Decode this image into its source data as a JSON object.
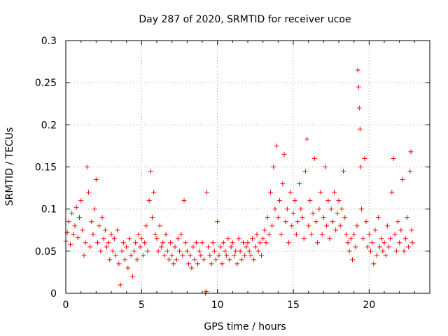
{
  "chart_data": {
    "type": "scatter",
    "title": "Day 287 of 2020, SRMTID for receiver ucoe",
    "xlabel": "GPS time / hours",
    "ylabel": "SRMTID / TECUs",
    "xlim": [
      0,
      24
    ],
    "ylim": [
      0,
      0.3
    ],
    "xticks": [
      0,
      5,
      10,
      15,
      20
    ],
    "xtick_labels": [
      "0",
      "5",
      "10",
      "15",
      "20"
    ],
    "yticks": [
      0,
      0.05,
      0.1,
      0.15,
      0.2,
      0.25,
      0.3
    ],
    "ytick_labels": [
      "0",
      "0.05",
      "0.1",
      "0.15",
      "0.2",
      "0.25",
      "0.3"
    ],
    "grid": true,
    "marker": "+",
    "color": "#ff0000",
    "series": [
      {
        "name": "SRMTID",
        "points": [
          [
            0.0,
            0.062
          ],
          [
            0.1,
            0.072
          ],
          [
            0.2,
            0.085
          ],
          [
            0.3,
            0.058
          ],
          [
            0.4,
            0.095
          ],
          [
            0.5,
            0.07
          ],
          [
            0.6,
            0.08
          ],
          [
            0.7,
            0.102
          ],
          [
            0.8,
            0.066
          ],
          [
            0.9,
            0.09
          ],
          [
            1.0,
            0.11
          ],
          [
            1.1,
            0.075
          ],
          [
            1.2,
            0.045
          ],
          [
            1.3,
            0.06
          ],
          [
            1.4,
            0.15
          ],
          [
            1.5,
            0.12
          ],
          [
            1.6,
            0.055
          ],
          [
            1.7,
            0.085
          ],
          [
            1.8,
            0.07
          ],
          [
            1.9,
            0.1
          ],
          [
            2.0,
            0.135
          ],
          [
            2.1,
            0.06
          ],
          [
            2.2,
            0.08
          ],
          [
            2.3,
            0.05
          ],
          [
            2.4,
            0.09
          ],
          [
            2.5,
            0.065
          ],
          [
            2.6,
            0.075
          ],
          [
            2.7,
            0.055
          ],
          [
            2.8,
            0.06
          ],
          [
            2.9,
            0.04
          ],
          [
            3.0,
            0.07
          ],
          [
            3.1,
            0.05
          ],
          [
            3.2,
            0.065
          ],
          [
            3.3,
            0.045
          ],
          [
            3.4,
            0.075
          ],
          [
            3.5,
            0.035
          ],
          [
            3.6,
            0.01
          ],
          [
            3.7,
            0.05
          ],
          [
            3.8,
            0.06
          ],
          [
            3.9,
            0.04
          ],
          [
            4.0,
            0.055
          ],
          [
            4.1,
            0.03
          ],
          [
            4.2,
            0.065
          ],
          [
            4.3,
            0.045
          ],
          [
            4.4,
            0.02
          ],
          [
            4.5,
            0.05
          ],
          [
            4.6,
            0.06
          ],
          [
            4.7,
            0.04
          ],
          [
            4.8,
            0.07
          ],
          [
            4.9,
            0.055
          ],
          [
            5.0,
            0.065
          ],
          [
            5.1,
            0.045
          ],
          [
            5.2,
            0.06
          ],
          [
            5.3,
            0.08
          ],
          [
            5.4,
            0.05
          ],
          [
            5.5,
            0.11
          ],
          [
            5.6,
            0.145
          ],
          [
            5.7,
            0.09
          ],
          [
            5.8,
            0.12
          ],
          [
            5.9,
            0.07
          ],
          [
            6.0,
            0.065
          ],
          [
            6.1,
            0.05
          ],
          [
            6.2,
            0.08
          ],
          [
            6.3,
            0.055
          ],
          [
            6.4,
            0.06
          ],
          [
            6.5,
            0.045
          ],
          [
            6.6,
            0.07
          ],
          [
            6.7,
            0.05
          ],
          [
            6.8,
            0.04
          ],
          [
            6.9,
            0.06
          ],
          [
            7.0,
            0.045
          ],
          [
            7.1,
            0.035
          ],
          [
            7.2,
            0.055
          ],
          [
            7.3,
            0.04
          ],
          [
            7.4,
            0.065
          ],
          [
            7.5,
            0.05
          ],
          [
            7.6,
            0.07
          ],
          [
            7.7,
            0.045
          ],
          [
            7.8,
            0.11
          ],
          [
            7.9,
            0.06
          ],
          [
            8.0,
            0.05
          ],
          [
            8.1,
            0.035
          ],
          [
            8.2,
            0.045
          ],
          [
            8.3,
            0.03
          ],
          [
            8.4,
            0.055
          ],
          [
            8.5,
            0.04
          ],
          [
            8.6,
            0.06
          ],
          [
            8.7,
            0.035
          ],
          [
            8.8,
            0.05
          ],
          [
            8.9,
            0.045
          ],
          [
            9.0,
            0.06
          ],
          [
            9.1,
            0.04
          ],
          [
            9.2,
            0.0
          ],
          [
            9.25,
            0.002
          ],
          [
            9.3,
            0.12
          ],
          [
            9.4,
            0.055
          ],
          [
            9.5,
            0.045
          ],
          [
            9.6,
            0.035
          ],
          [
            9.7,
            0.06
          ],
          [
            9.8,
            0.05
          ],
          [
            9.9,
            0.04
          ],
          [
            10.0,
            0.085
          ],
          [
            10.1,
            0.045
          ],
          [
            10.2,
            0.055
          ],
          [
            10.3,
            0.035
          ],
          [
            10.4,
            0.06
          ],
          [
            10.5,
            0.05
          ],
          [
            10.6,
            0.045
          ],
          [
            10.7,
            0.065
          ],
          [
            10.8,
            0.04
          ],
          [
            10.9,
            0.055
          ],
          [
            11.0,
            0.06
          ],
          [
            11.1,
            0.045
          ],
          [
            11.2,
            0.05
          ],
          [
            11.3,
            0.035
          ],
          [
            11.4,
            0.065
          ],
          [
            11.5,
            0.05
          ],
          [
            11.6,
            0.04
          ],
          [
            11.7,
            0.06
          ],
          [
            11.8,
            0.045
          ],
          [
            11.9,
            0.055
          ],
          [
            12.0,
            0.06
          ],
          [
            12.1,
            0.05
          ],
          [
            12.2,
            0.045
          ],
          [
            12.3,
            0.065
          ],
          [
            12.4,
            0.04
          ],
          [
            12.5,
            0.055
          ],
          [
            12.6,
            0.07
          ],
          [
            12.7,
            0.05
          ],
          [
            12.8,
            0.06
          ],
          [
            12.9,
            0.045
          ],
          [
            13.0,
            0.065
          ],
          [
            13.1,
            0.075
          ],
          [
            13.2,
            0.06
          ],
          [
            13.3,
            0.09
          ],
          [
            13.4,
            0.07
          ],
          [
            13.5,
            0.12
          ],
          [
            13.6,
            0.08
          ],
          [
            13.7,
            0.15
          ],
          [
            13.8,
            0.1
          ],
          [
            13.9,
            0.175
          ],
          [
            14.0,
            0.09
          ],
          [
            14.1,
            0.11
          ],
          [
            14.2,
            0.07
          ],
          [
            14.3,
            0.13
          ],
          [
            14.4,
            0.165
          ],
          [
            14.5,
            0.085
          ],
          [
            14.6,
            0.1
          ],
          [
            14.7,
            0.06
          ],
          [
            14.8,
            0.12
          ],
          [
            14.9,
            0.08
          ],
          [
            15.0,
            0.095
          ],
          [
            15.1,
            0.11
          ],
          [
            15.2,
            0.07
          ],
          [
            15.3,
            0.085
          ],
          [
            15.4,
            0.13
          ],
          [
            15.5,
            0.1
          ],
          [
            15.6,
            0.09
          ],
          [
            15.7,
            0.065
          ],
          [
            15.8,
            0.145
          ],
          [
            15.9,
            0.183
          ],
          [
            16.0,
            0.08
          ],
          [
            16.1,
            0.11
          ],
          [
            16.2,
            0.07
          ],
          [
            16.3,
            0.095
          ],
          [
            16.4,
            0.16
          ],
          [
            16.5,
            0.085
          ],
          [
            16.6,
            0.06
          ],
          [
            16.7,
            0.1
          ],
          [
            16.8,
            0.12
          ],
          [
            16.9,
            0.07
          ],
          [
            17.0,
            0.09
          ],
          [
            17.1,
            0.15
          ],
          [
            17.2,
            0.08
          ],
          [
            17.3,
            0.11
          ],
          [
            17.4,
            0.065
          ],
          [
            17.5,
            0.1
          ],
          [
            17.6,
            0.085
          ],
          [
            17.7,
            0.12
          ],
          [
            17.8,
            0.075
          ],
          [
            17.9,
            0.095
          ],
          [
            18.0,
            0.11
          ],
          [
            18.1,
            0.08
          ],
          [
            18.2,
            0.1
          ],
          [
            18.3,
            0.145
          ],
          [
            18.4,
            0.09
          ],
          [
            18.5,
            0.07
          ],
          [
            18.6,
            0.06
          ],
          [
            18.7,
            0.05
          ],
          [
            18.8,
            0.065
          ],
          [
            18.9,
            0.04
          ],
          [
            19.0,
            0.07
          ],
          [
            19.1,
            0.055
          ],
          [
            19.2,
            0.08
          ],
          [
            19.25,
            0.265
          ],
          [
            19.3,
            0.245
          ],
          [
            19.35,
            0.22
          ],
          [
            19.4,
            0.195
          ],
          [
            19.45,
            0.15
          ],
          [
            19.5,
            0.1
          ],
          [
            19.6,
            0.065
          ],
          [
            19.7,
            0.16
          ],
          [
            19.8,
            0.085
          ],
          [
            19.9,
            0.055
          ],
          [
            20.0,
            0.07
          ],
          [
            20.1,
            0.05
          ],
          [
            20.2,
            0.06
          ],
          [
            20.3,
            0.035
          ],
          [
            20.4,
            0.075
          ],
          [
            20.5,
            0.045
          ],
          [
            20.6,
            0.09
          ],
          [
            20.7,
            0.055
          ],
          [
            20.8,
            0.065
          ],
          [
            20.9,
            0.05
          ],
          [
            21.0,
            0.06
          ],
          [
            21.1,
            0.045
          ],
          [
            21.2,
            0.08
          ],
          [
            21.3,
            0.055
          ],
          [
            21.4,
            0.065
          ],
          [
            21.5,
            0.12
          ],
          [
            21.6,
            0.16
          ],
          [
            21.7,
            0.07
          ],
          [
            21.8,
            0.05
          ],
          [
            21.9,
            0.085
          ],
          [
            22.0,
            0.06
          ],
          [
            22.1,
            0.075
          ],
          [
            22.2,
            0.135
          ],
          [
            22.3,
            0.05
          ],
          [
            22.4,
            0.065
          ],
          [
            22.5,
            0.09
          ],
          [
            22.6,
            0.055
          ],
          [
            22.7,
            0.145
          ],
          [
            22.75,
            0.168
          ],
          [
            22.8,
            0.075
          ],
          [
            22.85,
            0.06
          ]
        ]
      }
    ]
  }
}
